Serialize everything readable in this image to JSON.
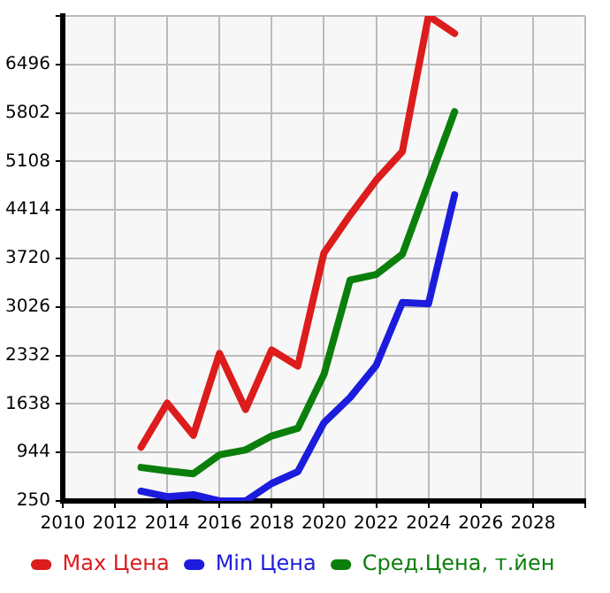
{
  "chart_data": {
    "type": "line",
    "x": [
      2013,
      2014,
      2015,
      2016,
      2017,
      2018,
      2019,
      2020,
      2021,
      2022,
      2023,
      2024,
      2025
    ],
    "series": [
      {
        "name": "Max Цена",
        "color": "#dd1c1c",
        "values": [
          1020,
          1650,
          1190,
          2360,
          1560,
          2410,
          2180,
          3800,
          4340,
          4840,
          5250,
          7190,
          6940
        ]
      },
      {
        "name": "Min Цена",
        "color": "#1c1cdd",
        "values": [
          390,
          310,
          340,
          250,
          250,
          500,
          670,
          1370,
          1730,
          2190,
          3090,
          3070,
          4630
        ]
      },
      {
        "name": "Сред.Цена, т.йен",
        "color": "#0b7f0b",
        "values": [
          730,
          680,
          640,
          910,
          980,
          1180,
          1290,
          2060,
          3410,
          3490,
          3780,
          4800,
          5820
        ]
      }
    ],
    "xlim": [
      2010,
      2030
    ],
    "xticks": [
      2010,
      2012,
      2014,
      2016,
      2018,
      2020,
      2022,
      2024,
      2026,
      2028,
      {
        "value": 2030,
        "label": null
      }
    ],
    "ylim": [
      250,
      7190
    ],
    "yticks": [
      250,
      944,
      1638,
      2332,
      3026,
      3720,
      4414,
      5108,
      5802,
      6496,
      {
        "value": 7190,
        "label": null
      }
    ],
    "grid": true,
    "legend": "bottom",
    "marker": "none",
    "line_style": "solid"
  }
}
